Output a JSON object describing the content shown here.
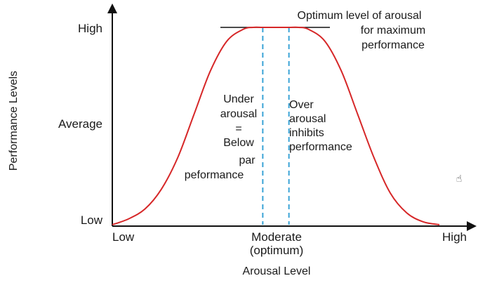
{
  "chart_data": {
    "type": "line",
    "title": "",
    "xlabel": "Arousal Level",
    "ylabel": "Performance Levels",
    "x_ticks": [
      "Low",
      "Moderate",
      "(optimum)",
      "High"
    ],
    "y_ticks": [
      "High",
      "Average",
      "Low"
    ],
    "xlim": [
      0,
      1
    ],
    "ylim": [
      0,
      1
    ],
    "grid": false,
    "legend": "none",
    "series": [
      {
        "x": [
          0.0,
          0.05,
          0.1,
          0.15,
          0.2,
          0.25,
          0.3,
          0.35,
          0.4,
          0.43,
          0.46,
          0.5,
          0.54,
          0.57,
          0.6,
          0.65,
          0.7,
          0.75,
          0.8,
          0.85,
          0.9,
          0.95,
          1.0
        ],
        "y": [
          0.0,
          0.03,
          0.08,
          0.18,
          0.34,
          0.56,
          0.78,
          0.93,
          0.99,
          1.0,
          1.0,
          1.0,
          1.0,
          1.0,
          0.99,
          0.93,
          0.78,
          0.56,
          0.34,
          0.16,
          0.06,
          0.015,
          0.0
        ]
      }
    ],
    "optimum_band": [
      0.46,
      0.54
    ],
    "annotations": {
      "optimum": [
        "Optimum level of arousal",
        "for maximum",
        "performance"
      ],
      "under": [
        "Under",
        "arousal",
        "=",
        "Below",
        "par",
        "peformance"
      ],
      "over": [
        "Over",
        "arousal",
        "inhibits",
        "performance"
      ]
    },
    "colors": {
      "curve": "#d62728",
      "guide": "#3aa3d6",
      "axis": "#111111",
      "text": "#1a1a1a"
    }
  },
  "overlay": {
    "cursor_icon": "hand-cursor-icon",
    "cursor_glyph": "☝"
  }
}
